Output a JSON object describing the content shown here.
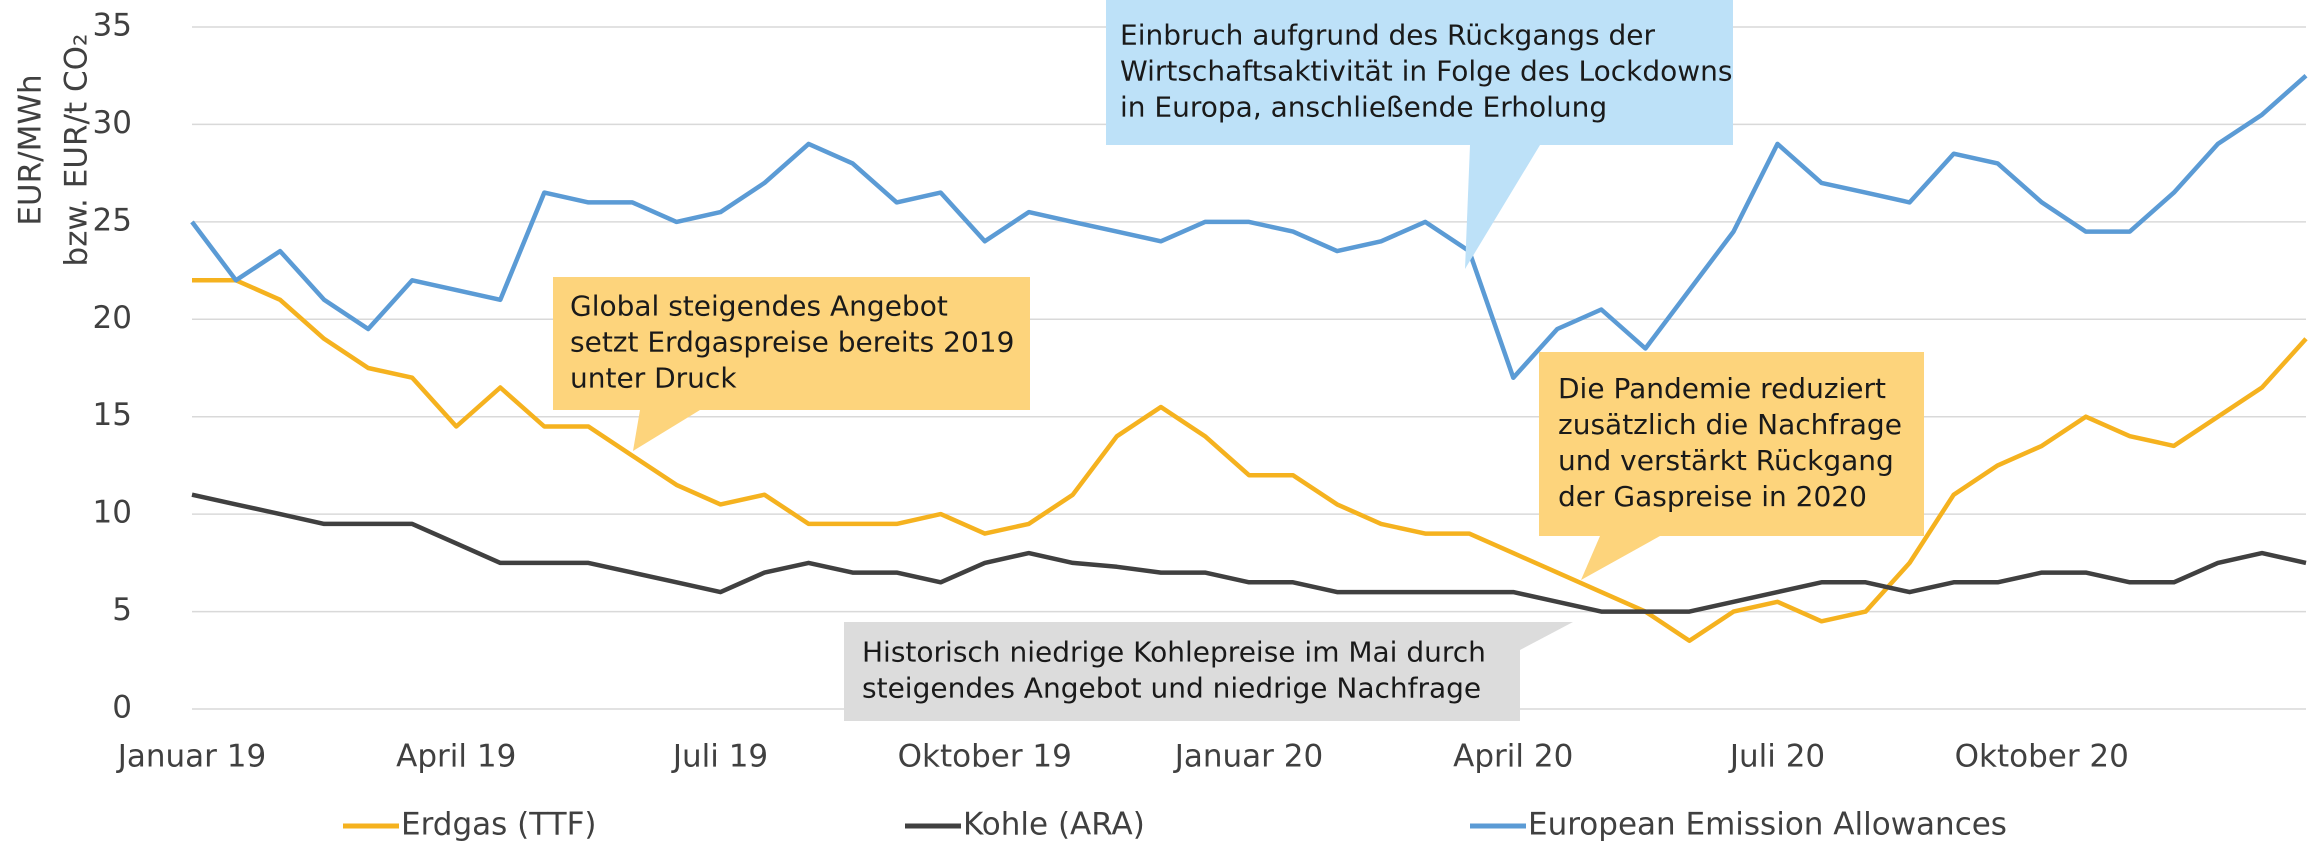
{
  "chart_data": {
    "type": "line",
    "y_label": [
      "EUR/MWh",
      "bzw. EUR/t CO₂"
    ],
    "categories": [
      "Januar 19",
      null,
      null,
      null,
      null,
      null,
      "April 19",
      null,
      null,
      null,
      null,
      null,
      "Juli 19",
      null,
      null,
      null,
      null,
      null,
      "Oktober 19",
      null,
      null,
      null,
      null,
      null,
      "Januar 20",
      null,
      null,
      null,
      null,
      null,
      "April 20",
      null,
      null,
      null,
      null,
      null,
      "Juli 20",
      null,
      null,
      null,
      null,
      null,
      "Oktober 20",
      null,
      null,
      null,
      null,
      null,
      null
    ],
    "series": [
      {
        "name": "Erdgas (TTF)",
        "color": "#f5b21f",
        "values": [
          22,
          22,
          21,
          19,
          17.5,
          17,
          14.5,
          16.5,
          14.5,
          14.5,
          13,
          11.5,
          10.5,
          11,
          9.5,
          9.5,
          9.5,
          10,
          9,
          9.5,
          11,
          14,
          15.5,
          14,
          12,
          12,
          10.5,
          9.5,
          9,
          9,
          8,
          7,
          6,
          5,
          3.5,
          5,
          5.5,
          4.5,
          5,
          7.5,
          11,
          12.5,
          13.5,
          15,
          14,
          13.5,
          15,
          16.5,
          19
        ]
      },
      {
        "name": "Kohle (ARA)",
        "color": "#404040",
        "values": [
          11,
          10.5,
          10,
          9.5,
          9.5,
          9.5,
          8.5,
          7.5,
          7.5,
          7.5,
          7,
          6.5,
          6,
          7,
          7.5,
          7,
          7,
          6.5,
          7.5,
          8,
          7.5,
          7.3,
          7,
          7,
          6.5,
          6.5,
          6,
          6,
          6,
          6,
          6,
          5.5,
          5,
          5,
          5,
          5.5,
          6,
          6.5,
          6.5,
          6,
          6.5,
          6.5,
          7,
          7,
          6.5,
          6.5,
          7.5,
          8,
          7.5
        ]
      },
      {
        "name": "European Emission Allowances",
        "color": "#5b9bd5",
        "values": [
          25,
          22,
          23.5,
          21,
          19.5,
          22,
          21.5,
          21,
          26.5,
          26,
          26,
          25,
          25.5,
          27,
          29,
          28,
          26,
          26.5,
          24,
          25.5,
          25,
          24.5,
          24,
          25,
          25,
          24.5,
          23.5,
          24,
          25,
          23.5,
          17,
          19.5,
          20.5,
          18.5,
          21.5,
          24.5,
          29,
          27,
          26.5,
          26,
          28.5,
          28,
          26,
          24.5,
          24.5,
          26.5,
          29,
          30.5,
          32.5
        ]
      }
    ],
    "ylim": [
      0,
      35
    ],
    "yticks": [
      0,
      5,
      10,
      15,
      20,
      25,
      30,
      35
    ],
    "grid": true,
    "annotations": [
      {
        "lines": [
          "Einbruch aufgrund des Rückgangs der",
          "Wirtschaftsaktivität in Folge des Lockdowns",
          "in Europa, anschließende Erholung"
        ],
        "color": "#bde1f8"
      },
      {
        "lines": [
          "Global steigendes Angebot",
          "setzt Erdgaspreise bereits 2019",
          "unter Druck"
        ],
        "color": "#fdd47c"
      },
      {
        "lines": [
          "Die Pandemie reduziert",
          "zusätzlich die Nachfrage",
          "und verstärkt Rückgang",
          "der Gaspreise in 2020"
        ],
        "color": "#fdd47c"
      },
      {
        "lines": [
          "Historisch niedrige Kohlepreise im Mai durch",
          "steigendes Angebot und niedrige Nachfrage"
        ],
        "color": "#dcdcdc"
      }
    ],
    "legend": "bottom"
  }
}
